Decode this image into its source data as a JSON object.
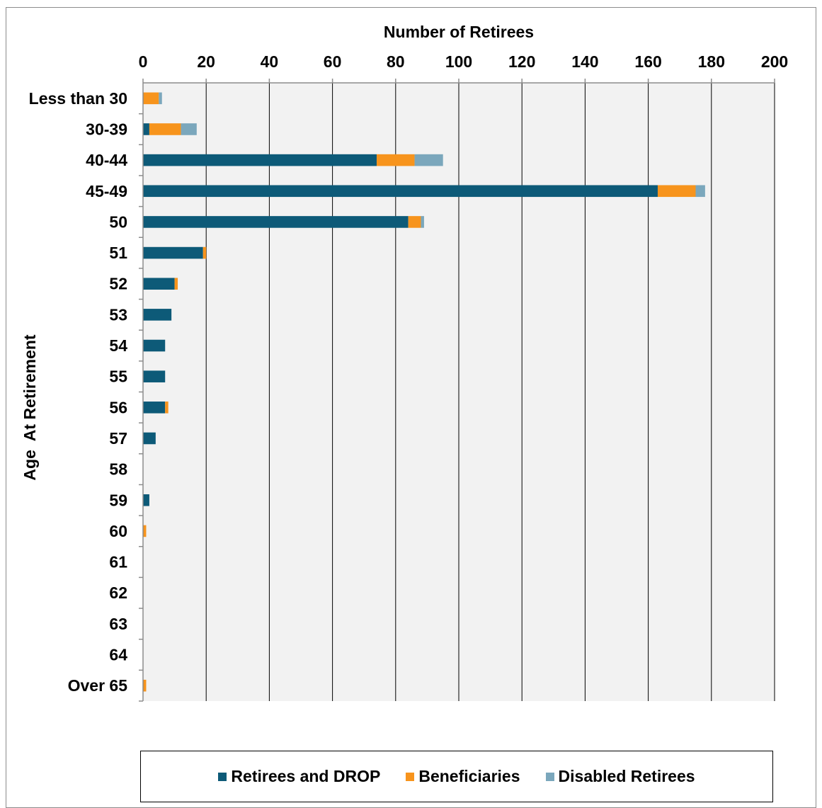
{
  "chart_data": {
    "type": "bar",
    "orientation": "horizontal",
    "stacked": true,
    "title": "",
    "xlabel": "Number of Retirees",
    "ylabel": "Age  At Retirement",
    "xlim": [
      0,
      200
    ],
    "xticks": [
      0,
      20,
      40,
      60,
      80,
      100,
      120,
      140,
      160,
      180,
      200
    ],
    "x_axis_position": "top",
    "grid": "vertical",
    "plot_background": "#f2f2f2",
    "categories": [
      "Less than 30",
      "30-39",
      "40-44",
      "45-49",
      "50",
      "51",
      "52",
      "53",
      "54",
      "55",
      "56",
      "57",
      "58",
      "59",
      "60",
      "61",
      "62",
      "63",
      "64",
      "Over 65"
    ],
    "series": [
      {
        "name": "Retirees and DROP",
        "color": "#0d5a78",
        "values": [
          0,
          2,
          74,
          163,
          84,
          19,
          10,
          9,
          7,
          7,
          7,
          4,
          0,
          2,
          0,
          0,
          0,
          0,
          0,
          0
        ]
      },
      {
        "name": "Beneficiaries",
        "color": "#f7941d",
        "values": [
          5,
          10,
          12,
          12,
          4,
          1,
          1,
          0,
          0,
          0,
          1,
          0,
          0,
          0,
          1,
          0,
          0,
          0,
          0,
          1
        ]
      },
      {
        "name": "Disabled Retirees",
        "color": "#7ba7bc",
        "values": [
          1,
          5,
          9,
          3,
          1,
          0,
          0,
          0,
          0,
          0,
          0,
          0,
          0,
          0,
          0,
          0,
          0,
          0,
          0,
          0
        ]
      }
    ],
    "legend_position": "bottom"
  }
}
